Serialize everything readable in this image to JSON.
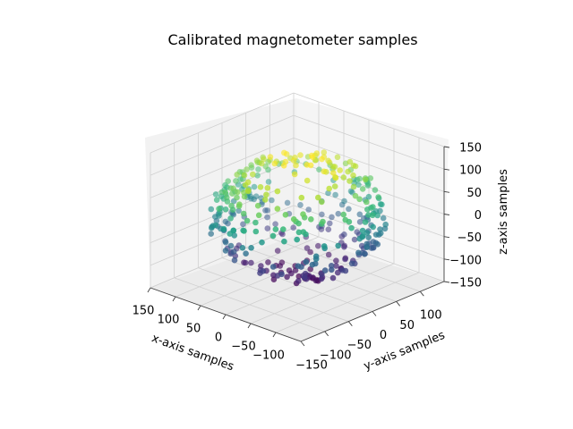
{
  "chart_data": {
    "type": "scatter3d",
    "title": "Calibrated magnetometer samples",
    "xlabel": "x-axis samples",
    "ylabel": "y-axis samples",
    "zlabel": "z-axis samples",
    "xlim": [
      -150,
      150
    ],
    "ylim": [
      -150,
      150
    ],
    "zlim": [
      -150,
      150
    ],
    "xticks": [
      -100,
      -50,
      0,
      50,
      100,
      150
    ],
    "yticks": [
      -150,
      -100,
      -50,
      0,
      50,
      100
    ],
    "zticks": [
      -150,
      -100,
      -50,
      0,
      50,
      100,
      150
    ],
    "colormap": "viridis",
    "color_by": "z",
    "grid": true,
    "point_radius_units": 120,
    "points_description": "approximately 400 samples distributed on a sphere of radius ~120, colored by z"
  }
}
